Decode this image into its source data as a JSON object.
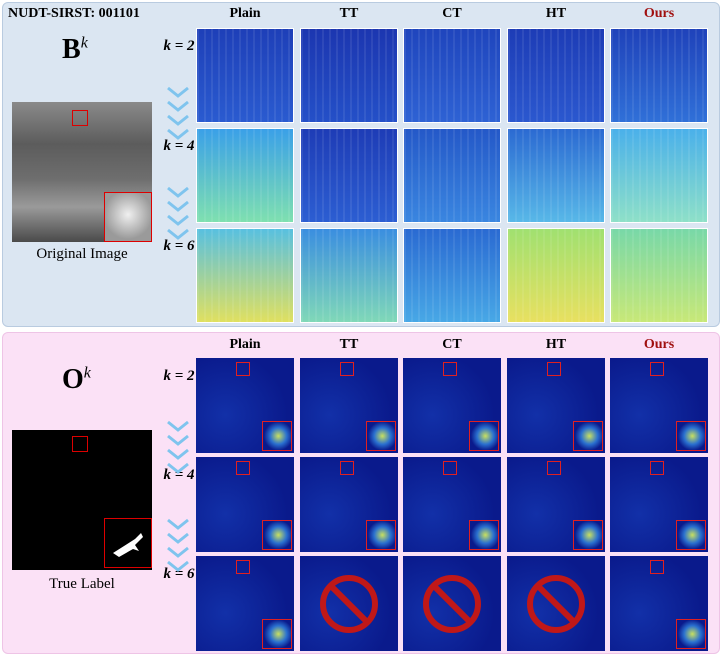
{
  "top": {
    "title": "NUDT-SIRST: 001101",
    "symbol": "B",
    "superscript": "k",
    "image_label": "Original Image",
    "columns": [
      "Plain",
      "TT",
      "CT",
      "HT",
      "Ours"
    ],
    "rows": [
      "k = 2",
      "k = 4",
      "k = 6"
    ]
  },
  "bottom": {
    "symbol": "O",
    "superscript": "k",
    "image_label": "True Label",
    "columns": [
      "Plain",
      "TT",
      "CT",
      "HT",
      "Ours"
    ],
    "rows": [
      "k = 2",
      "k = 4",
      "k = 6"
    ]
  }
}
